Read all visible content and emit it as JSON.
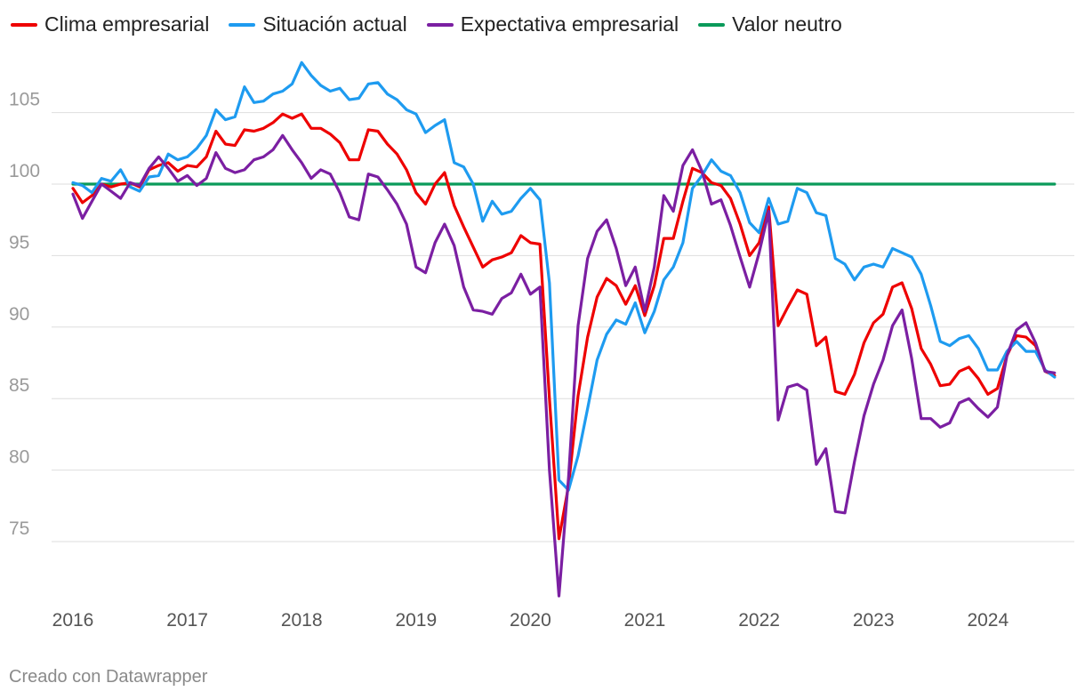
{
  "chart_data": {
    "type": "line",
    "title": "",
    "xlabel": "",
    "ylabel": "",
    "ylim": [
      70.5,
      110
    ],
    "xlim": [
      2016,
      2024.75
    ],
    "y_ticks": [
      75,
      80,
      85,
      90,
      95,
      100,
      105
    ],
    "x_ticks": [
      2016,
      2017,
      2018,
      2019,
      2020,
      2021,
      2022,
      2023,
      2024
    ],
    "x_tick_labels": [
      "2016",
      "2017",
      "2018",
      "2019",
      "2020",
      "2021",
      "2022",
      "2023",
      "2024"
    ],
    "x_start": 2016.0,
    "x_step_months": 1,
    "series": [
      {
        "name": "Clima empresarial",
        "color": "#ee0000",
        "values": [
          99.7,
          98.7,
          99.2,
          100.0,
          99.8,
          100.0,
          100.1,
          99.8,
          101.0,
          101.3,
          101.5,
          100.9,
          101.3,
          101.2,
          101.9,
          103.7,
          102.8,
          102.7,
          103.8,
          103.7,
          103.9,
          104.3,
          104.9,
          104.6,
          104.9,
          103.9,
          103.9,
          103.5,
          102.9,
          101.7,
          101.7,
          103.8,
          103.7,
          102.8,
          102.1,
          101.0,
          99.4,
          98.6,
          100.0,
          100.8,
          98.5,
          97.0,
          95.6,
          94.2,
          94.7,
          94.9,
          95.2,
          96.4,
          95.9,
          95.8,
          85.0,
          75.2,
          78.9,
          85.2,
          89.3,
          92.1,
          93.4,
          92.9,
          91.6,
          92.9,
          90.8,
          92.9,
          96.2,
          96.2,
          98.8,
          101.1,
          100.8,
          100.1,
          99.9,
          99.0,
          97.2,
          95.0,
          95.9,
          98.4,
          90.1,
          91.4,
          92.6,
          92.3,
          88.7,
          89.3,
          85.5,
          85.3,
          86.7,
          88.9,
          90.3,
          90.9,
          92.8,
          93.1,
          91.3,
          88.5,
          87.4,
          85.9,
          86.0,
          86.9,
          87.2,
          86.4,
          85.3,
          85.7,
          88.0,
          89.4,
          89.3,
          88.7,
          86.9,
          86.6
        ]
      },
      {
        "name": "Situación actual",
        "color": "#1e9bf0",
        "values": [
          100.1,
          99.9,
          99.4,
          100.4,
          100.2,
          101.0,
          99.8,
          99.5,
          100.5,
          100.6,
          102.1,
          101.7,
          101.9,
          102.5,
          103.4,
          105.2,
          104.5,
          104.7,
          106.8,
          105.7,
          105.8,
          106.3,
          106.5,
          107.0,
          108.5,
          107.6,
          106.9,
          106.5,
          106.7,
          105.9,
          106.0,
          107.0,
          107.1,
          106.3,
          105.9,
          105.2,
          104.9,
          103.6,
          104.1,
          104.5,
          101.5,
          101.2,
          100.0,
          97.4,
          98.8,
          97.9,
          98.1,
          99.0,
          99.7,
          98.9,
          93.1,
          79.3,
          78.6,
          81.0,
          84.3,
          87.7,
          89.5,
          90.5,
          90.2,
          91.7,
          89.6,
          91.1,
          93.3,
          94.2,
          95.9,
          99.7,
          100.6,
          101.7,
          100.9,
          100.6,
          99.4,
          97.3,
          96.6,
          99.0,
          97.2,
          97.4,
          99.7,
          99.4,
          98.0,
          97.8,
          94.8,
          94.4,
          93.3,
          94.2,
          94.4,
          94.2,
          95.5,
          95.2,
          94.9,
          93.7,
          91.5,
          89.0,
          88.7,
          89.2,
          89.4,
          88.5,
          87.0,
          87.0,
          88.3,
          89.0,
          88.3,
          88.3,
          87.0,
          86.5
        ]
      },
      {
        "name": "Expectativa empresarial",
        "color": "#7b1fa2",
        "values": [
          99.3,
          97.6,
          98.8,
          100.0,
          99.5,
          99.0,
          100.1,
          99.9,
          101.1,
          101.9,
          101.1,
          100.2,
          100.6,
          99.9,
          100.4,
          102.2,
          101.1,
          100.8,
          101.0,
          101.7,
          101.9,
          102.4,
          103.4,
          102.4,
          101.5,
          100.4,
          101.0,
          100.7,
          99.4,
          97.7,
          97.5,
          100.7,
          100.5,
          99.6,
          98.6,
          97.2,
          94.2,
          93.8,
          95.9,
          97.2,
          95.7,
          92.8,
          91.2,
          91.1,
          90.9,
          92.0,
          92.4,
          93.7,
          92.3,
          92.8,
          80.0,
          71.2,
          79.5,
          90.1,
          94.8,
          96.7,
          97.5,
          95.5,
          92.9,
          94.2,
          91.1,
          94.2,
          99.2,
          98.1,
          101.3,
          102.4,
          100.9,
          98.6,
          98.9,
          97.1,
          94.9,
          92.8,
          95.2,
          98.1,
          83.5,
          85.8,
          86.0,
          85.6,
          80.4,
          81.5,
          77.1,
          77.0,
          80.6,
          83.8,
          86.0,
          87.7,
          90.1,
          91.2,
          87.8,
          83.6,
          83.6,
          83.0,
          83.3,
          84.7,
          85.0,
          84.3,
          83.7,
          84.4,
          88.0,
          89.8,
          90.3,
          88.9,
          86.9,
          86.8
        ]
      },
      {
        "name": "Valor neutro",
        "color": "#0a9a5a",
        "values": [
          100,
          100,
          100,
          100,
          100,
          100,
          100,
          100,
          100,
          100,
          100,
          100,
          100,
          100,
          100,
          100,
          100,
          100,
          100,
          100,
          100,
          100,
          100,
          100,
          100,
          100,
          100,
          100,
          100,
          100,
          100,
          100,
          100,
          100,
          100,
          100,
          100,
          100,
          100,
          100,
          100,
          100,
          100,
          100,
          100,
          100,
          100,
          100,
          100,
          100,
          100,
          100,
          100,
          100,
          100,
          100,
          100,
          100,
          100,
          100,
          100,
          100,
          100,
          100,
          100,
          100,
          100,
          100,
          100,
          100,
          100,
          100,
          100,
          100,
          100,
          100,
          100,
          100,
          100,
          100,
          100,
          100,
          100,
          100,
          100,
          100,
          100,
          100,
          100,
          100,
          100,
          100,
          100,
          100,
          100,
          100,
          100,
          100,
          100,
          100,
          100,
          100,
          100,
          100
        ]
      }
    ]
  },
  "footer": {
    "credit": "Creado con Datawrapper"
  }
}
